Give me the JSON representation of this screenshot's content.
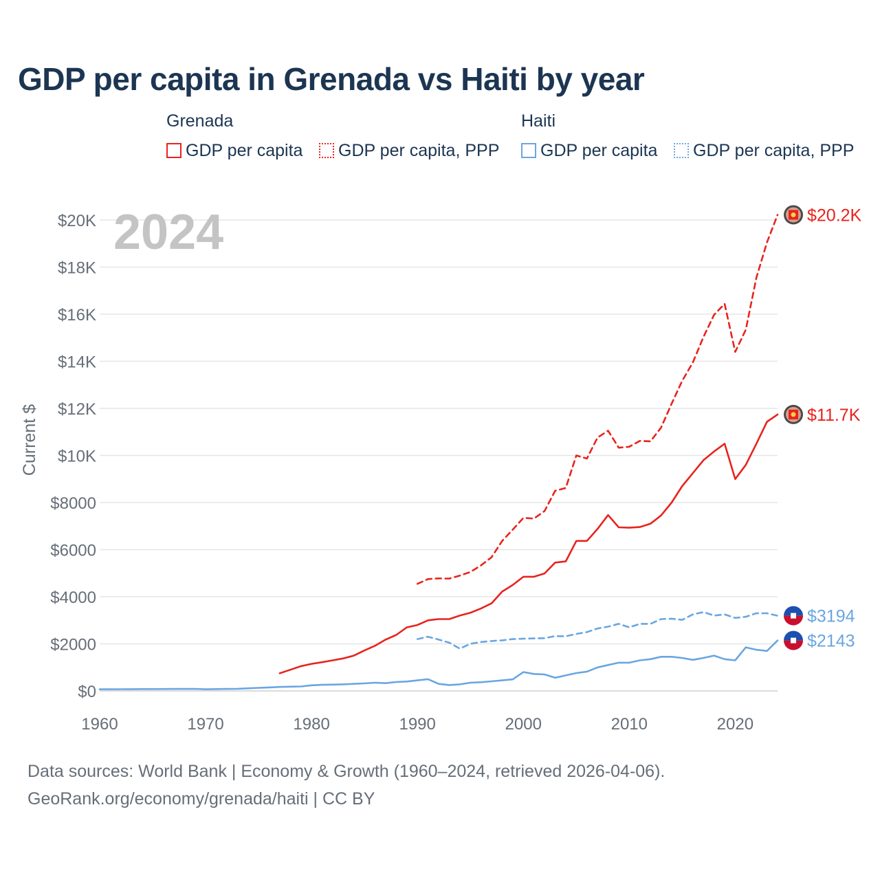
{
  "title": "GDP per capita in Grenada vs Haiti by year",
  "legend": {
    "groups": [
      {
        "name": "Grenada",
        "color": "#e8231d",
        "items": [
          {
            "label": "GDP per capita",
            "style": "solid"
          },
          {
            "label": "GDP per capita, PPP",
            "style": "dotted"
          }
        ]
      },
      {
        "name": "Haiti",
        "color": "#6aa6e0",
        "items": [
          {
            "label": "GDP per capita",
            "style": "solid"
          },
          {
            "label": "GDP per capita, PPP",
            "style": "dotted"
          }
        ]
      }
    ]
  },
  "year_label": "2024",
  "footer": {
    "line1": "Data sources: World Bank | Economy & Growth (1960–2024, retrieved 2026-04-06).",
    "line2": "GeoRank.org/economy/grenada/haiti | CC BY"
  },
  "chart_data": {
    "type": "line",
    "title": "GDP per capita in Grenada vs Haiti by year",
    "xlabel": "",
    "ylabel": "Current $",
    "xlim": [
      1960,
      2024
    ],
    "ylim": [
      0,
      20000
    ],
    "xticks": [
      1960,
      1970,
      1980,
      1990,
      2000,
      2010,
      2020
    ],
    "xtick_labels": [
      "1960",
      "1970",
      "1980",
      "1990",
      "2000",
      "2010",
      "2020"
    ],
    "yticks": [
      0,
      2000,
      4000,
      6000,
      8000,
      10000,
      12000,
      14000,
      16000,
      18000,
      20000
    ],
    "ytick_labels": [
      "$0",
      "$2000",
      "$4000",
      "$6000",
      "$8000",
      "$10K",
      "$12K",
      "$14K",
      "$16K",
      "$18K",
      "$20K"
    ],
    "grid": true,
    "series": [
      {
        "name": "Grenada GDP per capita",
        "color": "#e8231d",
        "dash": "solid",
        "end_label": "$11.7K",
        "x": [
          1977,
          1978,
          1979,
          1980,
          1981,
          1982,
          1983,
          1984,
          1985,
          1986,
          1987,
          1988,
          1989,
          1990,
          1991,
          1992,
          1993,
          1994,
          1995,
          1996,
          1997,
          1998,
          1999,
          2000,
          2001,
          2002,
          2003,
          2004,
          2005,
          2006,
          2007,
          2008,
          2009,
          2010,
          2011,
          2012,
          2013,
          2014,
          2015,
          2016,
          2017,
          2018,
          2019,
          2020,
          2021,
          2022,
          2023,
          2024
        ],
        "values": [
          750,
          900,
          1050,
          1150,
          1220,
          1300,
          1380,
          1500,
          1720,
          1920,
          2180,
          2380,
          2700,
          2800,
          3000,
          3050,
          3050,
          3200,
          3320,
          3500,
          3720,
          4220,
          4500,
          4850,
          4850,
          4990,
          5450,
          5500,
          6370,
          6370,
          6880,
          7470,
          6950,
          6930,
          6960,
          7100,
          7450,
          8000,
          8700,
          9250,
          9800,
          10170,
          10500,
          9000,
          9600,
          10500,
          11430,
          11740
        ]
      },
      {
        "name": "Grenada GDP per capita, PPP",
        "color": "#e8231d",
        "dash": "dashed",
        "end_label": "$20.2K",
        "x": [
          1990,
          1991,
          1992,
          1993,
          1994,
          1995,
          1996,
          1997,
          1998,
          1999,
          2000,
          2001,
          2002,
          2003,
          2004,
          2005,
          2006,
          2007,
          2008,
          2009,
          2010,
          2011,
          2012,
          2013,
          2014,
          2015,
          2016,
          2017,
          2018,
          2019,
          2020,
          2021,
          2022,
          2023,
          2024
        ],
        "values": [
          4550,
          4750,
          4780,
          4770,
          4900,
          5050,
          5330,
          5680,
          6370,
          6850,
          7350,
          7320,
          7640,
          8500,
          8620,
          10000,
          9870,
          10760,
          11050,
          10330,
          10370,
          10620,
          10600,
          11180,
          12200,
          13170,
          13950,
          15030,
          15970,
          16440,
          14400,
          15340,
          17550,
          19050,
          20220
        ]
      },
      {
        "name": "Haiti GDP per capita, PPP",
        "color": "#6aa6e0",
        "dash": "dashed",
        "end_label": "$3194",
        "x": [
          1990,
          1991,
          1992,
          1993,
          1994,
          1995,
          1996,
          1997,
          1998,
          1999,
          2000,
          2001,
          2002,
          2003,
          2004,
          2005,
          2006,
          2007,
          2008,
          2009,
          2010,
          2011,
          2012,
          2013,
          2014,
          2015,
          2016,
          2017,
          2018,
          2019,
          2020,
          2021,
          2022,
          2023,
          2024
        ],
        "values": [
          2200,
          2300,
          2180,
          2050,
          1800,
          2000,
          2080,
          2120,
          2150,
          2200,
          2220,
          2230,
          2240,
          2330,
          2320,
          2420,
          2500,
          2650,
          2730,
          2850,
          2700,
          2850,
          2850,
          3050,
          3070,
          3020,
          3250,
          3350,
          3200,
          3250,
          3100,
          3150,
          3300,
          3300,
          3194
        ]
      },
      {
        "name": "Haiti GDP per capita",
        "color": "#6aa6e0",
        "dash": "solid",
        "end_label": "$2143",
        "x": [
          1960,
          1961,
          1962,
          1963,
          1964,
          1965,
          1966,
          1967,
          1968,
          1969,
          1970,
          1971,
          1972,
          1973,
          1974,
          1975,
          1976,
          1977,
          1978,
          1979,
          1980,
          1981,
          1982,
          1983,
          1984,
          1985,
          1986,
          1987,
          1988,
          1989,
          1990,
          1991,
          1992,
          1993,
          1994,
          1995,
          1996,
          1997,
          1998,
          1999,
          2000,
          2001,
          2002,
          2003,
          2004,
          2005,
          2006,
          2007,
          2008,
          2009,
          2010,
          2011,
          2012,
          2013,
          2014,
          2015,
          2016,
          2017,
          2018,
          2019,
          2020,
          2021,
          2022,
          2023,
          2024
        ],
        "values": [
          70,
          70,
          72,
          75,
          78,
          80,
          82,
          84,
          86,
          88,
          70,
          80,
          85,
          90,
          110,
          130,
          150,
          170,
          180,
          190,
          240,
          260,
          270,
          280,
          300,
          320,
          350,
          330,
          380,
          400,
          450,
          500,
          300,
          250,
          280,
          350,
          370,
          410,
          450,
          490,
          800,
          720,
          700,
          560,
          660,
          760,
          820,
          1000,
          1100,
          1200,
          1200,
          1300,
          1350,
          1450,
          1450,
          1400,
          1320,
          1400,
          1500,
          1350,
          1300,
          1850,
          1750,
          1700,
          2143
        ]
      }
    ]
  }
}
